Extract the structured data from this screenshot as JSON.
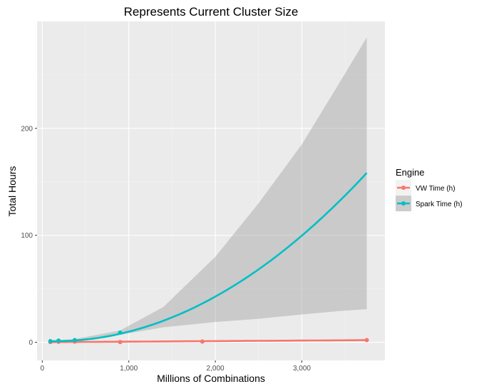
{
  "chart_data": {
    "type": "line",
    "title": "Represents Current Cluster Size",
    "xlabel": "Millions of Combinations",
    "ylabel": "Total Hours",
    "xlim": [
      -60,
      3960
    ],
    "ylim": [
      -17,
      300
    ],
    "x_ticks": [
      0,
      1000,
      2000,
      3000
    ],
    "x_tick_labels": [
      "0",
      "1,000",
      "2,000",
      "3,000"
    ],
    "y_ticks": [
      0,
      100,
      200
    ],
    "y_tick_labels": [
      "0",
      "100",
      "200"
    ],
    "grid": true,
    "legend": {
      "title": "Engine",
      "position": "right"
    },
    "series": [
      {
        "name": "VW Time (h)",
        "color": "#F8766D",
        "points": [
          {
            "x": 94,
            "y": 0.3
          },
          {
            "x": 188,
            "y": 0.4
          },
          {
            "x": 375,
            "y": 0.6
          },
          {
            "x": 900,
            "y": 0.2
          },
          {
            "x": 1850,
            "y": 0.7
          },
          {
            "x": 3750,
            "y": 2.0
          }
        ],
        "fit_coefficients": [
          0.1,
          0.0005,
          0.0
        ]
      },
      {
        "name": "Spark Time (h)",
        "color": "#00BFC4",
        "points": [
          {
            "x": 94,
            "y": 1.0
          },
          {
            "x": 188,
            "y": 1.5
          },
          {
            "x": 375,
            "y": 2.0
          },
          {
            "x": 900,
            "y": 9.0
          }
        ],
        "fit_coefficients": [
          1.3,
          -0.0035,
          1.21e-05
        ],
        "band": [
          {
            "x": 94,
            "lower": -0.5,
            "upper": 1.5
          },
          {
            "x": 375,
            "lower": 1.0,
            "upper": 3.0
          },
          {
            "x": 900,
            "lower": 7.0,
            "upper": 11.0
          },
          {
            "x": 1400,
            "lower": 14.0,
            "upper": 33.0
          },
          {
            "x": 2000,
            "lower": 19.0,
            "upper": 80.0
          },
          {
            "x": 2500,
            "lower": 22.0,
            "upper": 130.0
          },
          {
            "x": 3000,
            "lower": 26.0,
            "upper": 185.0
          },
          {
            "x": 3400,
            "lower": 29.0,
            "upper": 238.0
          },
          {
            "x": 3750,
            "lower": 31.0,
            "upper": 285.0
          }
        ]
      }
    ]
  }
}
